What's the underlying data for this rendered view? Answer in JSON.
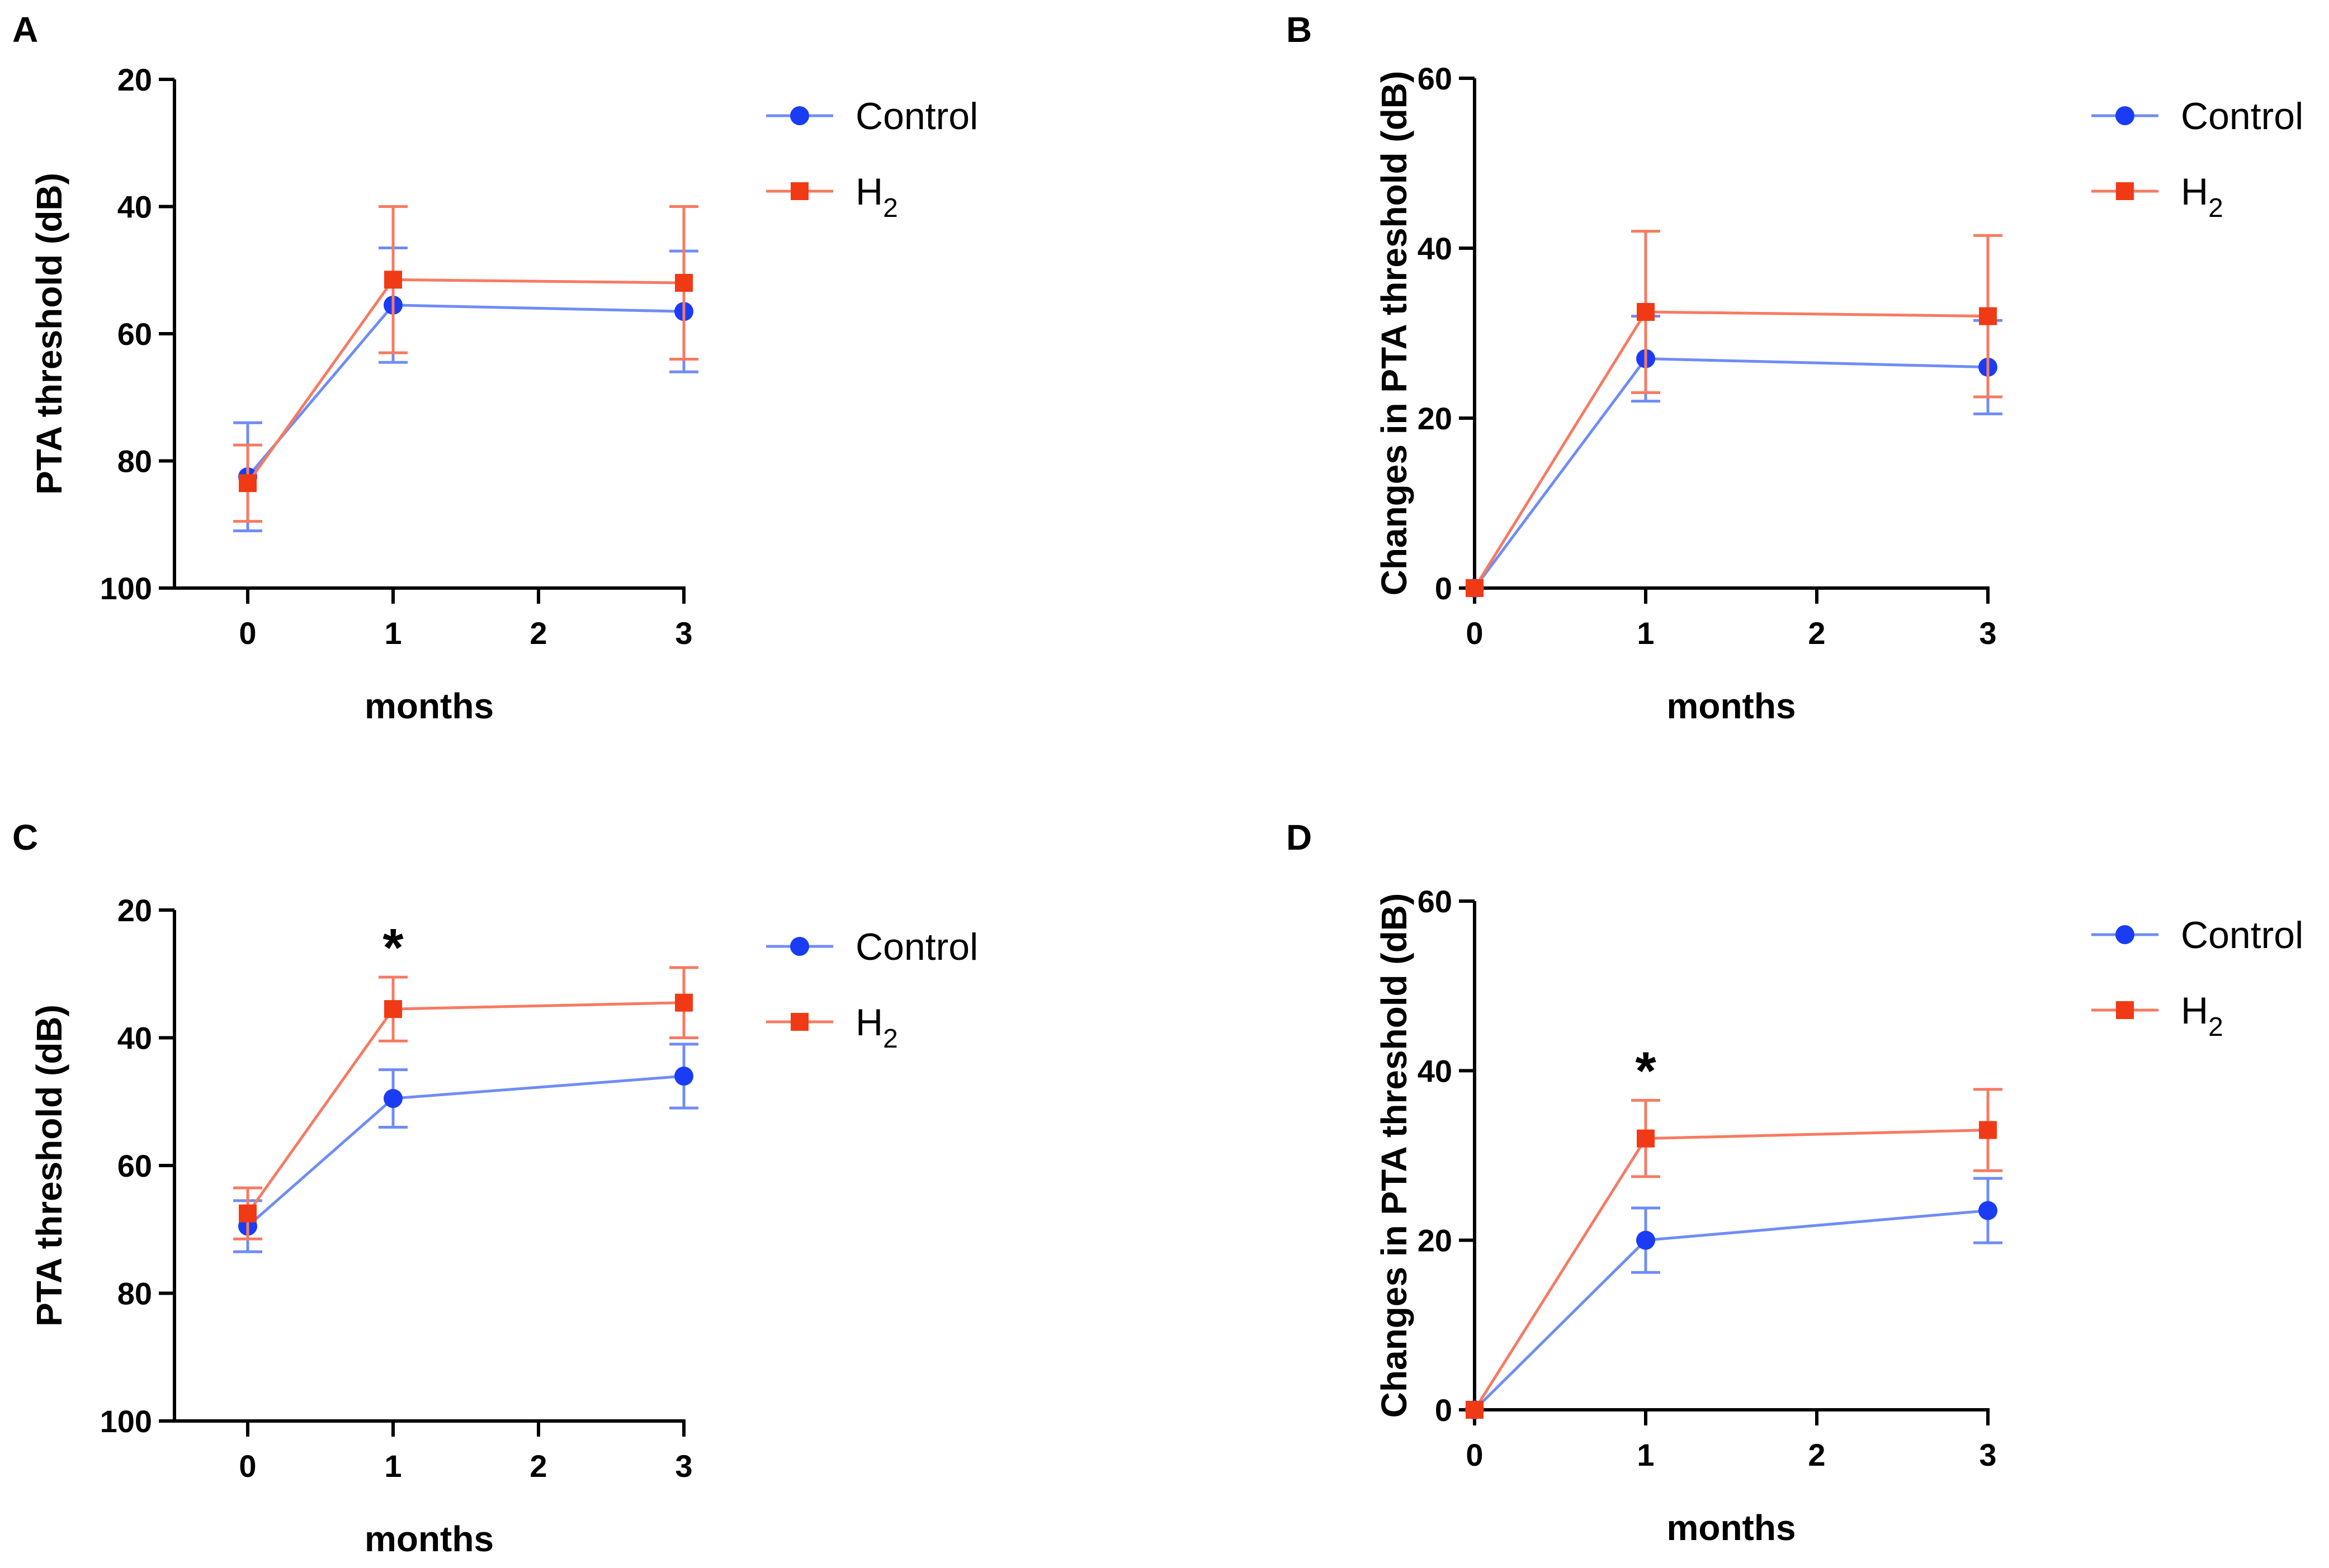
{
  "figure": {
    "panels": [
      "A",
      "B",
      "C",
      "D"
    ]
  },
  "colors": {
    "control": "#1a3cf5",
    "control_line": "#6f8cf7",
    "h2": "#f03a16",
    "h2_line": "#f77a62"
  },
  "chart_data": [
    {
      "panel": "A",
      "type": "line",
      "xlabel": "months",
      "ylabel": "PTA threshold (dB)",
      "xlim": [
        -0.5,
        3
      ],
      "ylim": [
        100,
        20
      ],
      "y_inverted": true,
      "xticks": [
        0,
        1,
        2,
        3
      ],
      "yticks": [
        20,
        40,
        60,
        80,
        100
      ],
      "x": [
        0,
        1,
        3
      ],
      "series": [
        {
          "name": "Control",
          "marker": "circle",
          "values": [
            82.5,
            55.5,
            56.5
          ],
          "errors": [
            8.5,
            9,
            9.5
          ]
        },
        {
          "name": "H2",
          "marker": "square",
          "values": [
            83.5,
            51.5,
            52.0
          ],
          "errors": [
            6,
            11.5,
            12
          ]
        }
      ],
      "legend": {
        "position": "right",
        "entries": [
          {
            "label": "Control"
          },
          {
            "label": "H",
            "sub": "2"
          }
        ]
      },
      "significance": []
    },
    {
      "panel": "B",
      "type": "line",
      "xlabel": "months",
      "ylabel": "Changes in PTA threshold (dB)",
      "xlim": [
        0,
        3
      ],
      "ylim": [
        0,
        60
      ],
      "xticks": [
        0,
        1,
        2,
        3
      ],
      "yticks": [
        0,
        20,
        40,
        60
      ],
      "x": [
        0,
        1,
        3
      ],
      "series": [
        {
          "name": "Control",
          "marker": "circle",
          "values": [
            0,
            27,
            26
          ],
          "errors": [
            0,
            5,
            5.5
          ]
        },
        {
          "name": "H2",
          "marker": "square",
          "values": [
            0,
            32.5,
            32
          ],
          "errors": [
            0,
            9.5,
            9.5
          ]
        }
      ],
      "legend": {
        "position": "right",
        "entries": [
          {
            "label": "Control"
          },
          {
            "label": "H",
            "sub": "2"
          }
        ]
      },
      "significance": []
    },
    {
      "panel": "C",
      "type": "line",
      "xlabel": "months",
      "ylabel": "PTA threshold (dB)",
      "xlim": [
        -0.5,
        3
      ],
      "ylim": [
        100,
        20
      ],
      "y_inverted": true,
      "xticks": [
        0,
        1,
        2,
        3
      ],
      "yticks": [
        20,
        40,
        60,
        80,
        100
      ],
      "x": [
        0,
        1,
        3
      ],
      "series": [
        {
          "name": "Control",
          "marker": "circle",
          "values": [
            69.5,
            49.5,
            46
          ],
          "errors": [
            4,
            4.5,
            5
          ]
        },
        {
          "name": "H2",
          "marker": "square",
          "values": [
            67.5,
            35.5,
            34.5
          ],
          "errors": [
            4,
            5,
            5.5
          ]
        }
      ],
      "legend": {
        "position": "right",
        "entries": [
          {
            "label": "Control"
          },
          {
            "label": "H",
            "sub": "2"
          }
        ]
      },
      "significance": [
        {
          "x": 1,
          "label": "*"
        }
      ]
    },
    {
      "panel": "D",
      "type": "line",
      "xlabel": "months",
      "ylabel": "Changes in PTA threshold (dB)",
      "xlim": [
        0,
        3
      ],
      "ylim": [
        0,
        60
      ],
      "xticks": [
        0,
        1,
        2,
        3
      ],
      "yticks": [
        0,
        20,
        40,
        60
      ],
      "x": [
        0,
        1,
        3
      ],
      "series": [
        {
          "name": "Control",
          "marker": "circle",
          "values": [
            0,
            20,
            23.5
          ],
          "errors": [
            0,
            3.8,
            3.8
          ]
        },
        {
          "name": "H2",
          "marker": "square",
          "values": [
            0,
            32,
            33
          ],
          "errors": [
            0,
            4.5,
            4.8
          ]
        }
      ],
      "legend": {
        "position": "right",
        "entries": [
          {
            "label": "Control"
          },
          {
            "label": "H",
            "sub": "2"
          }
        ]
      },
      "significance": [
        {
          "x": 1,
          "label": "*"
        }
      ]
    }
  ]
}
